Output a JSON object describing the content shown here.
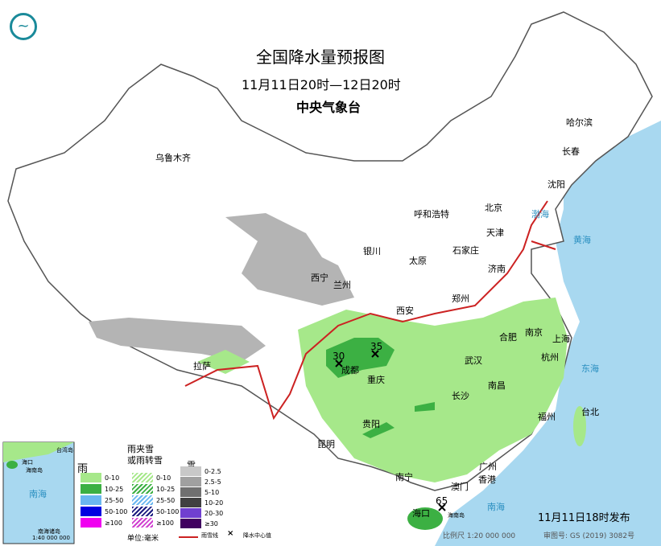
{
  "header": {
    "title": "全国降水量预报图",
    "subtitle": "11月11日20时—12日20时",
    "agency": "中央气象台"
  },
  "logo": {
    "icon": "cma-logo-icon",
    "color": "#1a8a9a"
  },
  "cities": [
    "乌鲁木齐",
    "哈尔滨",
    "长春",
    "沈阳",
    "呼和浩特",
    "北京",
    "天津",
    "石家庄",
    "太原",
    "银川",
    "西宁",
    "兰州",
    "济南",
    "郑州",
    "西安",
    "合肥",
    "南京",
    "上海",
    "杭州",
    "武汉",
    "成都",
    "重庆",
    "拉萨",
    "长沙",
    "南昌",
    "福州",
    "台北",
    "贵阳",
    "昆明",
    "南宁",
    "广州",
    "澳门",
    "香港",
    "海口",
    "海南岛"
  ],
  "seas": [
    "渤海",
    "黄海",
    "东海",
    "南海"
  ],
  "precip_centers": [
    {
      "value": "30",
      "near": "成都"
    },
    {
      "value": "35"
    },
    {
      "value": "65",
      "near": "海口"
    }
  ],
  "inset": {
    "title": "南海",
    "cities": [
      "台湾岛",
      "海口",
      "海南岛"
    ],
    "caption": "南海诸岛",
    "scale": "1:40 000 000"
  },
  "legend": {
    "rain": {
      "title": "雨",
      "items": [
        {
          "label": "0-10",
          "color": "#a6e88a"
        },
        {
          "label": "10-25",
          "color": "#3cb043"
        },
        {
          "label": "25-50",
          "color": "#6ab7f0"
        },
        {
          "label": "50-100",
          "color": "#0000e0"
        },
        {
          "label": "≥100",
          "color": "#f000f0"
        }
      ]
    },
    "mixed": {
      "title1": "雨夹雪",
      "title2": "或雨转雪",
      "items": [
        {
          "label": "0-10",
          "color": "#a6e88a"
        },
        {
          "label": "10-25",
          "color": "#3cb043"
        },
        {
          "label": "25-50",
          "color": "#6ab7f0"
        },
        {
          "label": "50-100",
          "color": "#1a1a80"
        },
        {
          "label": "≥100",
          "color": "#d040d0"
        }
      ]
    },
    "snow": {
      "title": "雪",
      "items": [
        {
          "label": "0-2.5",
          "color": "#c8c8c8"
        },
        {
          "label": "2.5-5",
          "color": "#a0a0a0"
        },
        {
          "label": "5-10",
          "color": "#707070"
        },
        {
          "label": "10-20",
          "color": "#404040"
        },
        {
          "label": "20-30",
          "color": "#7040d0"
        },
        {
          "label": "≥30",
          "color": "#400060"
        }
      ]
    },
    "unit": "单位:毫米",
    "freeze_line": "雨雪线",
    "center": "降水中心值"
  },
  "footer": {
    "issued": "11月11日18时发布",
    "scale": "比例尺 1:20 000 000",
    "approval": "审图号: GS (2019) 3082号"
  },
  "colors": {
    "sea": "#a8d8f0",
    "rain_light": "#a6e88a",
    "rain_moderate": "#3cb043",
    "snow": "#b4b4b4",
    "freeze_line": "#cc2222"
  }
}
